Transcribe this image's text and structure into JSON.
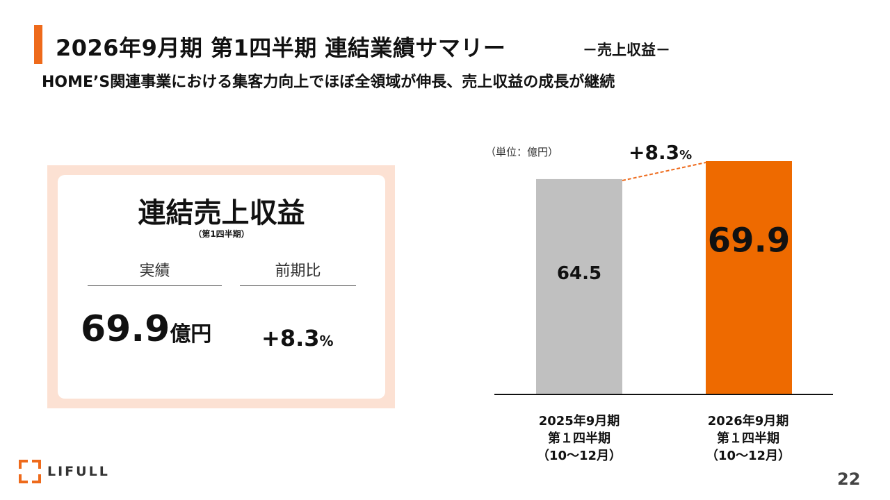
{
  "header": {
    "title": "2026年9月期 第1四半期 連結業績サマリー",
    "title_tag": "－売上収益－",
    "subtitle": "HOME’S関連事業における集客力向上でほぼ全領域が伸長、売上収益の成長が継続"
  },
  "kpi": {
    "title": "連結売上収益",
    "sub": "（第1四半期）",
    "actual_label": "実績",
    "yoy_label": "前期比",
    "actual_value": "69.9",
    "actual_unit": "億円",
    "yoy_value": "+8.3",
    "yoy_unit": "%"
  },
  "chart_data": {
    "type": "bar",
    "unit_note": "（単位：億円）",
    "categories": [
      [
        "2025年9月期",
        "第１四半期",
        "（10～12月）"
      ],
      [
        "2026年9月期",
        "第１四半期",
        "（10～12月）"
      ]
    ],
    "values": [
      64.5,
      69.9
    ],
    "value_labels": [
      "64.5",
      "69.9"
    ],
    "bar_colors": [
      "#C0C0C0",
      "#EE6A00"
    ],
    "growth_label": {
      "value": "+8.3",
      "unit": "%"
    },
    "ylim": [
      0,
      69.9
    ],
    "grid": false,
    "legend": "none"
  },
  "colors": {
    "accent": "#EE6A1B",
    "panel": "#FCE1D3"
  },
  "brand": {
    "logo_text": "LIFULL"
  },
  "footer": {
    "page_number": "22"
  }
}
